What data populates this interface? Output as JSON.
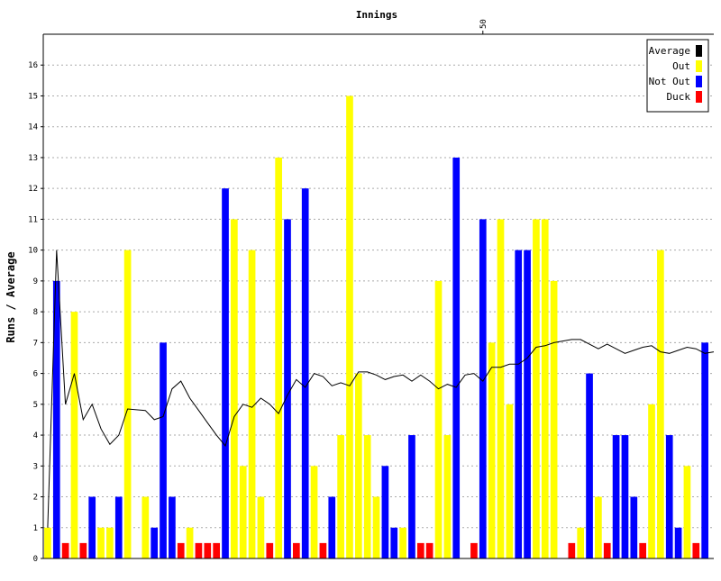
{
  "chart_data": {
    "type": "bar",
    "title": "Innings",
    "xlabel": "",
    "ylabel": "Runs / Average",
    "ylim": [
      0,
      17
    ],
    "yticks": [
      0,
      1,
      2,
      3,
      4,
      5,
      6,
      7,
      8,
      9,
      10,
      11,
      12,
      13,
      14,
      15,
      16
    ],
    "top_tick_labels": [
      {
        "at": 50,
        "label": "50"
      }
    ],
    "grid": "horizontal dotted",
    "legend_position": "top-right",
    "legend": [
      {
        "key": "average",
        "label": "Average",
        "color": "#000000"
      },
      {
        "key": "out",
        "label": "Out",
        "color": "#ffff00"
      },
      {
        "key": "not_out",
        "label": "Not Out",
        "color": "#0000ff"
      },
      {
        "key": "duck",
        "label": "Duck",
        "color": "#ff0000"
      }
    ],
    "innings": [
      {
        "n": 1,
        "runs": 1,
        "status": "out"
      },
      {
        "n": 2,
        "runs": 9,
        "status": "not_out"
      },
      {
        "n": 3,
        "runs": 0,
        "status": "duck"
      },
      {
        "n": 4,
        "runs": 8,
        "status": "out"
      },
      {
        "n": 5,
        "runs": 0,
        "status": "duck"
      },
      {
        "n": 6,
        "runs": 2,
        "status": "not_out"
      },
      {
        "n": 7,
        "runs": 1,
        "status": "out"
      },
      {
        "n": 8,
        "runs": 1,
        "status": "out"
      },
      {
        "n": 9,
        "runs": 2,
        "status": "not_out"
      },
      {
        "n": 10,
        "runs": 10,
        "status": "out"
      },
      {
        "n": 11,
        "runs": null,
        "status": "none"
      },
      {
        "n": 12,
        "runs": 2,
        "status": "out"
      },
      {
        "n": 13,
        "runs": 1,
        "status": "not_out"
      },
      {
        "n": 14,
        "runs": 7,
        "status": "not_out"
      },
      {
        "n": 15,
        "runs": 2,
        "status": "not_out"
      },
      {
        "n": 16,
        "runs": 0,
        "status": "duck"
      },
      {
        "n": 17,
        "runs": 1,
        "status": "out"
      },
      {
        "n": 18,
        "runs": 0,
        "status": "duck"
      },
      {
        "n": 19,
        "runs": 0,
        "status": "duck"
      },
      {
        "n": 20,
        "runs": 0,
        "status": "duck"
      },
      {
        "n": 21,
        "runs": 12,
        "status": "not_out"
      },
      {
        "n": 22,
        "runs": 11,
        "status": "out"
      },
      {
        "n": 23,
        "runs": 3,
        "status": "out"
      },
      {
        "n": 24,
        "runs": 10,
        "status": "out"
      },
      {
        "n": 25,
        "runs": 2,
        "status": "out"
      },
      {
        "n": 26,
        "runs": 0,
        "status": "duck"
      },
      {
        "n": 27,
        "runs": 13,
        "status": "out"
      },
      {
        "n": 28,
        "runs": 11,
        "status": "not_out"
      },
      {
        "n": 29,
        "runs": 0,
        "status": "duck"
      },
      {
        "n": 30,
        "runs": 12,
        "status": "not_out"
      },
      {
        "n": 31,
        "runs": 3,
        "status": "out"
      },
      {
        "n": 32,
        "runs": 0,
        "status": "duck"
      },
      {
        "n": 33,
        "runs": 2,
        "status": "not_out"
      },
      {
        "n": 34,
        "runs": 4,
        "status": "out"
      },
      {
        "n": 35,
        "runs": 15,
        "status": "out"
      },
      {
        "n": 36,
        "runs": 6,
        "status": "out"
      },
      {
        "n": 37,
        "runs": 4,
        "status": "out"
      },
      {
        "n": 38,
        "runs": 2,
        "status": "out"
      },
      {
        "n": 39,
        "runs": 3,
        "status": "not_out"
      },
      {
        "n": 40,
        "runs": 1,
        "status": "not_out"
      },
      {
        "n": 41,
        "runs": 1,
        "status": "out"
      },
      {
        "n": 42,
        "runs": 4,
        "status": "not_out"
      },
      {
        "n": 43,
        "runs": 0,
        "status": "duck"
      },
      {
        "n": 44,
        "runs": 0,
        "status": "duck"
      },
      {
        "n": 45,
        "runs": 9,
        "status": "out"
      },
      {
        "n": 46,
        "runs": 4,
        "status": "out"
      },
      {
        "n": 47,
        "runs": 13,
        "status": "not_out"
      },
      {
        "n": 48,
        "runs": null,
        "status": "none"
      },
      {
        "n": 49,
        "runs": 0,
        "status": "duck"
      },
      {
        "n": 50,
        "runs": 11,
        "status": "not_out"
      },
      {
        "n": 51,
        "runs": 7,
        "status": "out"
      },
      {
        "n": 52,
        "runs": 11,
        "status": "out"
      },
      {
        "n": 53,
        "runs": 5,
        "status": "out"
      },
      {
        "n": 54,
        "runs": 10,
        "status": "not_out"
      },
      {
        "n": 55,
        "runs": 10,
        "status": "not_out"
      },
      {
        "n": 56,
        "runs": 11,
        "status": "out"
      },
      {
        "n": 57,
        "runs": 11,
        "status": "out"
      },
      {
        "n": 58,
        "runs": 9,
        "status": "out"
      },
      {
        "n": 59,
        "runs": null,
        "status": "none"
      },
      {
        "n": 60,
        "runs": 0,
        "status": "duck"
      },
      {
        "n": 61,
        "runs": 1,
        "status": "out"
      },
      {
        "n": 62,
        "runs": 6,
        "status": "not_out"
      },
      {
        "n": 63,
        "runs": 2,
        "status": "out"
      },
      {
        "n": 64,
        "runs": 0,
        "status": "duck"
      },
      {
        "n": 65,
        "runs": 4,
        "status": "not_out"
      },
      {
        "n": 66,
        "runs": 4,
        "status": "not_out"
      },
      {
        "n": 67,
        "runs": 2,
        "status": "not_out"
      },
      {
        "n": 68,
        "runs": 0,
        "status": "duck"
      },
      {
        "n": 69,
        "runs": 5,
        "status": "out"
      },
      {
        "n": 70,
        "runs": 10,
        "status": "out"
      },
      {
        "n": 71,
        "runs": 4,
        "status": "not_out"
      },
      {
        "n": 72,
        "runs": 1,
        "status": "not_out"
      },
      {
        "n": 73,
        "runs": 3,
        "status": "out"
      },
      {
        "n": 74,
        "runs": 0,
        "status": "duck"
      },
      {
        "n": 75,
        "runs": 7,
        "status": "not_out"
      }
    ],
    "average": [
      [
        1,
        1
      ],
      [
        2,
        10
      ],
      [
        3,
        5
      ],
      [
        4,
        6
      ],
      [
        5,
        4.5
      ],
      [
        6,
        5
      ],
      [
        7,
        4.2
      ],
      [
        8,
        3.7
      ],
      [
        9,
        4
      ],
      [
        10,
        4.85
      ],
      [
        12,
        4.8
      ],
      [
        13,
        4.5
      ],
      [
        14,
        4.6
      ],
      [
        15,
        5.5
      ],
      [
        16,
        5.75
      ],
      [
        17,
        5.2
      ],
      [
        18,
        4.8
      ],
      [
        19,
        4.4
      ],
      [
        20,
        4.0
      ],
      [
        21,
        3.65
      ],
      [
        22,
        4.6
      ],
      [
        23,
        5.0
      ],
      [
        24,
        4.9
      ],
      [
        25,
        5.2
      ],
      [
        26,
        5.0
      ],
      [
        27,
        4.7
      ],
      [
        28,
        5.3
      ],
      [
        29,
        5.8
      ],
      [
        30,
        5.55
      ],
      [
        31,
        6.0
      ],
      [
        32,
        5.9
      ],
      [
        33,
        5.6
      ],
      [
        34,
        5.7
      ],
      [
        35,
        5.6
      ],
      [
        36,
        6.05
      ],
      [
        37,
        6.05
      ],
      [
        38,
        5.95
      ],
      [
        39,
        5.8
      ],
      [
        40,
        5.9
      ],
      [
        41,
        5.95
      ],
      [
        42,
        5.75
      ],
      [
        43,
        5.95
      ],
      [
        44,
        5.75
      ],
      [
        45,
        5.5
      ],
      [
        46,
        5.65
      ],
      [
        47,
        5.55
      ],
      [
        48,
        5.95
      ],
      [
        49,
        6.0
      ],
      [
        50,
        5.75
      ],
      [
        51,
        6.2
      ],
      [
        52,
        6.2
      ],
      [
        53,
        6.3
      ],
      [
        54,
        6.3
      ],
      [
        55,
        6.5
      ],
      [
        56,
        6.85
      ],
      [
        57,
        6.9
      ],
      [
        58,
        7.0
      ],
      [
        59,
        7.05
      ],
      [
        60,
        7.1
      ],
      [
        61,
        7.1
      ],
      [
        62,
        6.95
      ],
      [
        63,
        6.8
      ],
      [
        64,
        6.95
      ],
      [
        65,
        6.8
      ],
      [
        66,
        6.65
      ],
      [
        67,
        6.75
      ],
      [
        68,
        6.85
      ],
      [
        69,
        6.9
      ],
      [
        70,
        6.7
      ],
      [
        71,
        6.65
      ],
      [
        72,
        6.75
      ],
      [
        73,
        6.85
      ],
      [
        74,
        6.8
      ],
      [
        75,
        6.65
      ],
      [
        76,
        6.7
      ]
    ]
  }
}
